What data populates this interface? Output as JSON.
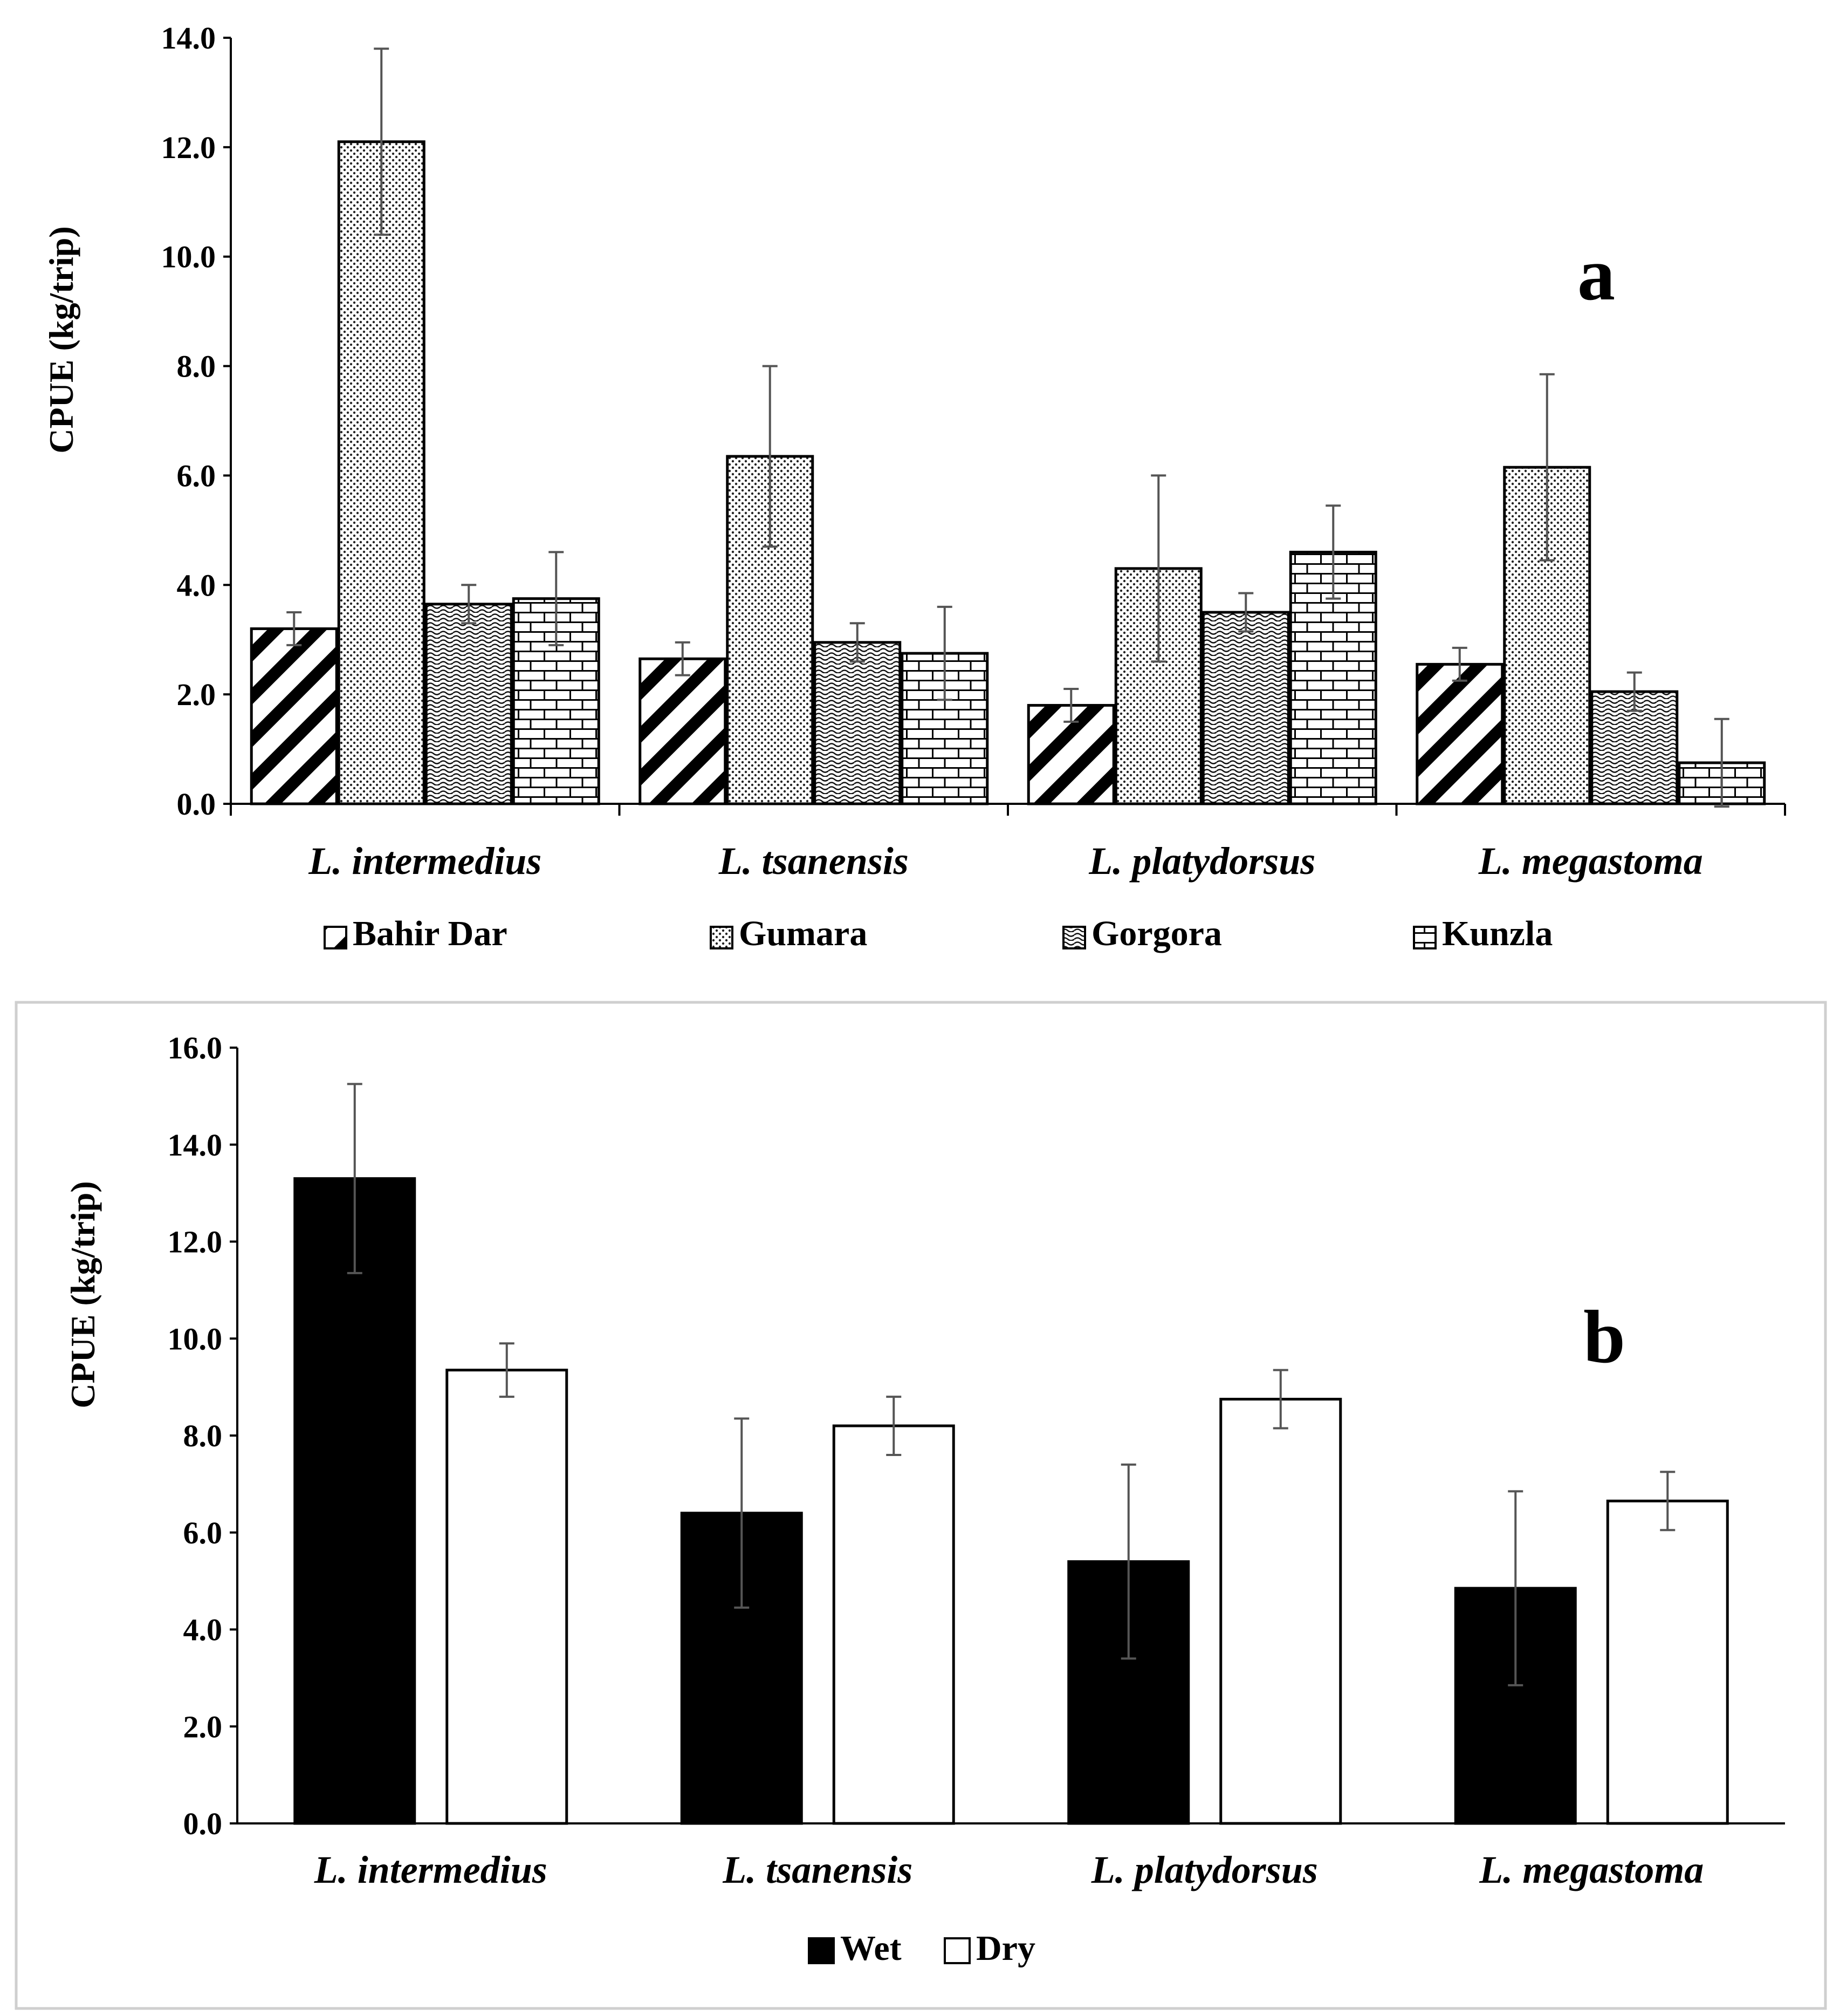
{
  "chart_data": [
    {
      "type": "bar",
      "panel_label": "a",
      "ylabel": "CPUE (kg/trip)",
      "ylim": [
        0,
        14
      ],
      "yticks": [
        "0.0",
        "2.0",
        "4.0",
        "6.0",
        "8.0",
        "10.0",
        "12.0",
        "14.0"
      ],
      "categories": [
        "L. intermedius",
        "L. tsanensis",
        "L. platydorsus",
        "L. megastoma"
      ],
      "legend_position": "bottom",
      "series": [
        {
          "name": "Bahir Dar",
          "pattern": "diagonal",
          "values": [
            3.2,
            2.65,
            1.8,
            2.55
          ],
          "errors": [
            0.3,
            0.3,
            0.3,
            0.3
          ]
        },
        {
          "name": "Gumara",
          "pattern": "dots",
          "values": [
            12.1,
            6.35,
            4.3,
            6.15
          ],
          "errors": [
            1.7,
            1.65,
            1.7,
            1.7
          ]
        },
        {
          "name": "Gorgora",
          "pattern": "waves",
          "values": [
            3.65,
            2.95,
            3.5,
            2.05
          ],
          "errors": [
            0.35,
            0.35,
            0.35,
            0.35
          ]
        },
        {
          "name": "Kunzla",
          "pattern": "bricks",
          "values": [
            3.75,
            2.75,
            4.6,
            0.75
          ],
          "errors": [
            0.85,
            0.85,
            0.85,
            0.8
          ]
        }
      ]
    },
    {
      "type": "bar",
      "panel_label": "b",
      "ylabel": "CPUE (kg/trip)",
      "ylim": [
        0,
        16
      ],
      "yticks": [
        "0.0",
        "2.0",
        "4.0",
        "6.0",
        "8.0",
        "10.0",
        "12.0",
        "14.0",
        "16.0"
      ],
      "categories": [
        "L. intermedius",
        "L. tsanensis",
        "L. platydorsus",
        "L. megastoma"
      ],
      "legend_position": "bottom",
      "series": [
        {
          "name": "Wet",
          "fill": "#000000",
          "values": [
            13.3,
            6.4,
            5.4,
            4.85
          ],
          "errors": [
            1.95,
            1.95,
            2.0,
            2.0
          ]
        },
        {
          "name": "Dry",
          "fill": "#ffffff",
          "values": [
            9.35,
            8.2,
            8.75,
            6.65
          ],
          "errors": [
            0.55,
            0.6,
            0.6,
            0.6
          ]
        }
      ]
    }
  ]
}
